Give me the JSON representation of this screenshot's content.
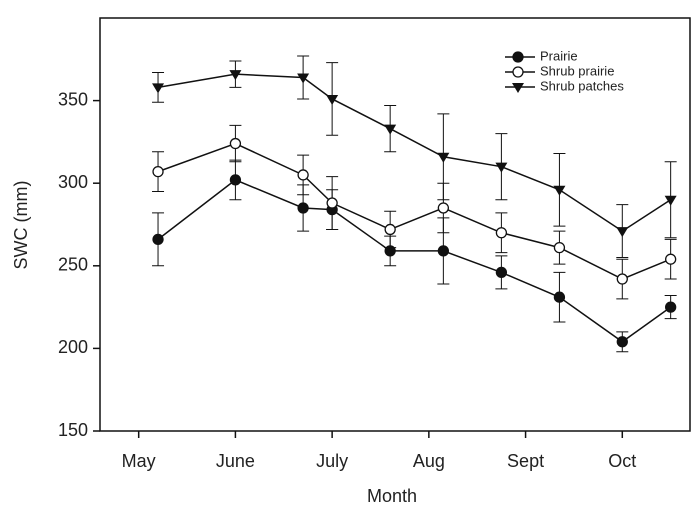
{
  "chart_data": {
    "type": "line",
    "x_label": "Month",
    "y_label": "SWC (mm)",
    "x": [
      0.2,
      1.0,
      1.7,
      2.0,
      2.6,
      3.15,
      3.75,
      4.35,
      5.0,
      5.5
    ],
    "xlim": [
      -0.4,
      5.7
    ],
    "xticks": [
      {
        "value": 0,
        "label": "May"
      },
      {
        "value": 1,
        "label": "June"
      },
      {
        "value": 2,
        "label": "July"
      },
      {
        "value": 3,
        "label": "Aug"
      },
      {
        "value": 4,
        "label": "Sept"
      },
      {
        "value": 5,
        "label": "Oct"
      }
    ],
    "ylim": [
      150,
      400
    ],
    "yticks": [
      150,
      200,
      250,
      300,
      350
    ],
    "legend": "upper right",
    "series": [
      {
        "name": "Prairie",
        "color": "#111111",
        "marker": "filled-circle",
        "values": [
          266,
          302,
          285,
          284,
          259,
          259,
          246,
          231,
          204,
          225
        ],
        "errors": [
          16,
          12,
          14,
          12,
          9,
          20,
          10,
          15,
          6,
          7
        ]
      },
      {
        "name": "Shrub prairie",
        "color": "#111111",
        "marker": "open-circle",
        "values": [
          307,
          324,
          305,
          288,
          272,
          285,
          270,
          261,
          242,
          254
        ],
        "errors": [
          12,
          11,
          12,
          16,
          11,
          15,
          12,
          10,
          12,
          12
        ]
      },
      {
        "name": "Shrub patches",
        "color": "#111111",
        "marker": "filled-triangle-down",
        "values": [
          358,
          366,
          364,
          351,
          333,
          316,
          310,
          296,
          271,
          290
        ],
        "errors": [
          9,
          8,
          13,
          22,
          14,
          26,
          20,
          22,
          16,
          23
        ]
      }
    ]
  }
}
